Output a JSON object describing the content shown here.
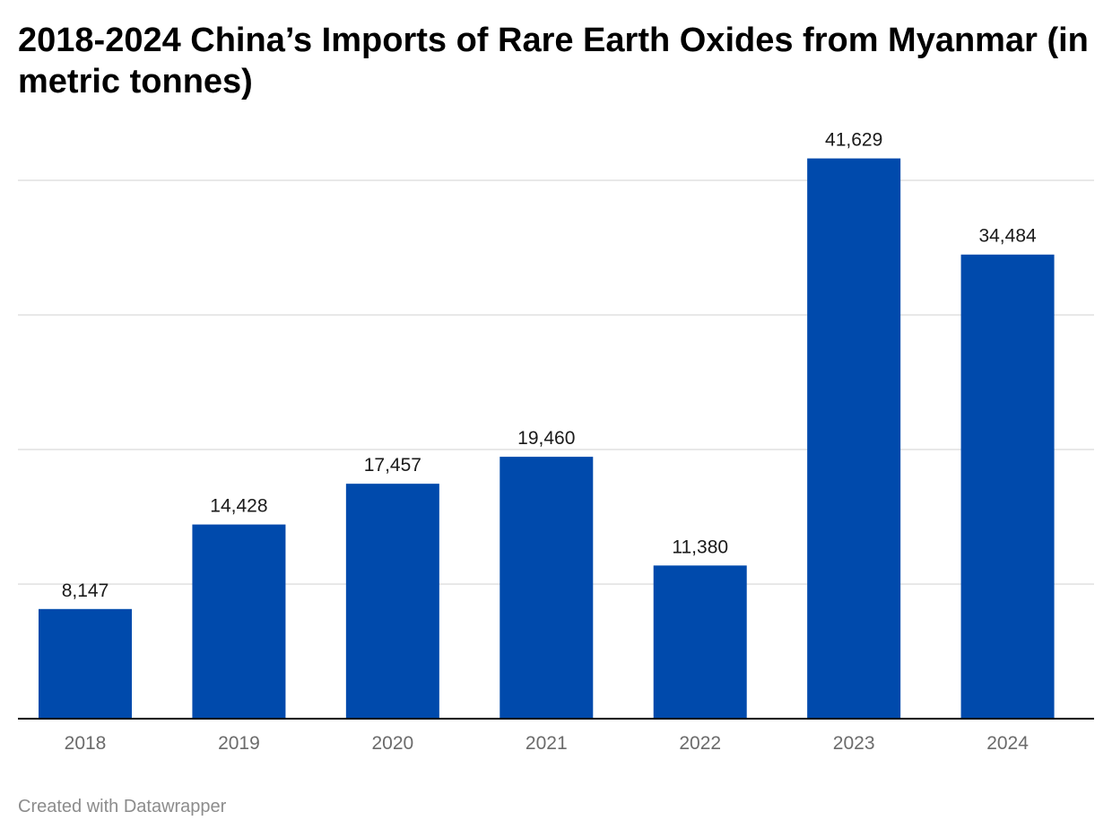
{
  "title": "2018-2024 China’s Imports of Rare Earth Oxides from Myanmar (in metric tonnes)",
  "footer": "Created with Datawrapper",
  "colors": {
    "bar": "#004AAC",
    "grid": "#e0e0e0",
    "axis": "#000000"
  },
  "chart_data": {
    "type": "bar",
    "title": "2018-2024 China’s Imports of Rare Earth Oxides from Myanmar (in metric tonnes)",
    "xlabel": "",
    "ylabel": "",
    "categories": [
      "2018",
      "2019",
      "2020",
      "2021",
      "2022",
      "2023",
      "2024"
    ],
    "values": [
      8147,
      14428,
      17457,
      19460,
      11380,
      41629,
      34484
    ],
    "value_labels": [
      "8,147",
      "14,428",
      "17,457",
      "19,460",
      "11,380",
      "41,629",
      "34,484"
    ],
    "ylim": [
      0,
      40000
    ],
    "grid_values": [
      10000,
      20000,
      30000,
      40000
    ],
    "grid": true,
    "legend": "none"
  }
}
